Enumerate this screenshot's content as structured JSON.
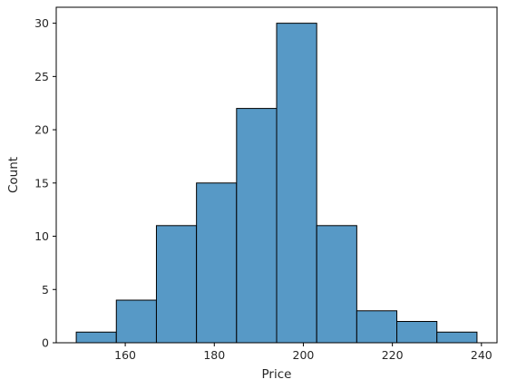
{
  "chart_data": {
    "type": "histogram",
    "xlabel": "Price",
    "ylabel": "Count",
    "bins": [
      {
        "start": 149.0,
        "end": 158.0,
        "count": 1
      },
      {
        "start": 158.0,
        "end": 167.0,
        "count": 4
      },
      {
        "start": 167.0,
        "end": 176.0,
        "count": 11
      },
      {
        "start": 176.0,
        "end": 185.0,
        "count": 15
      },
      {
        "start": 185.0,
        "end": 194.0,
        "count": 22
      },
      {
        "start": 194.0,
        "end": 203.0,
        "count": 30
      },
      {
        "start": 203.0,
        "end": 212.0,
        "count": 11
      },
      {
        "start": 212.0,
        "end": 221.0,
        "count": 3
      },
      {
        "start": 221.0,
        "end": 230.0,
        "count": 2
      },
      {
        "start": 230.0,
        "end": 239.0,
        "count": 1
      }
    ],
    "xlim": [
      144.5,
      243.5
    ],
    "ylim": [
      0,
      31.5
    ],
    "xticks": [
      160,
      180,
      200,
      220,
      240
    ],
    "yticks": [
      0,
      5,
      10,
      15,
      20,
      25,
      30
    ],
    "bar_color": "#5799c6",
    "edge_color": "#000000",
    "grid": false,
    "legend": "none"
  }
}
